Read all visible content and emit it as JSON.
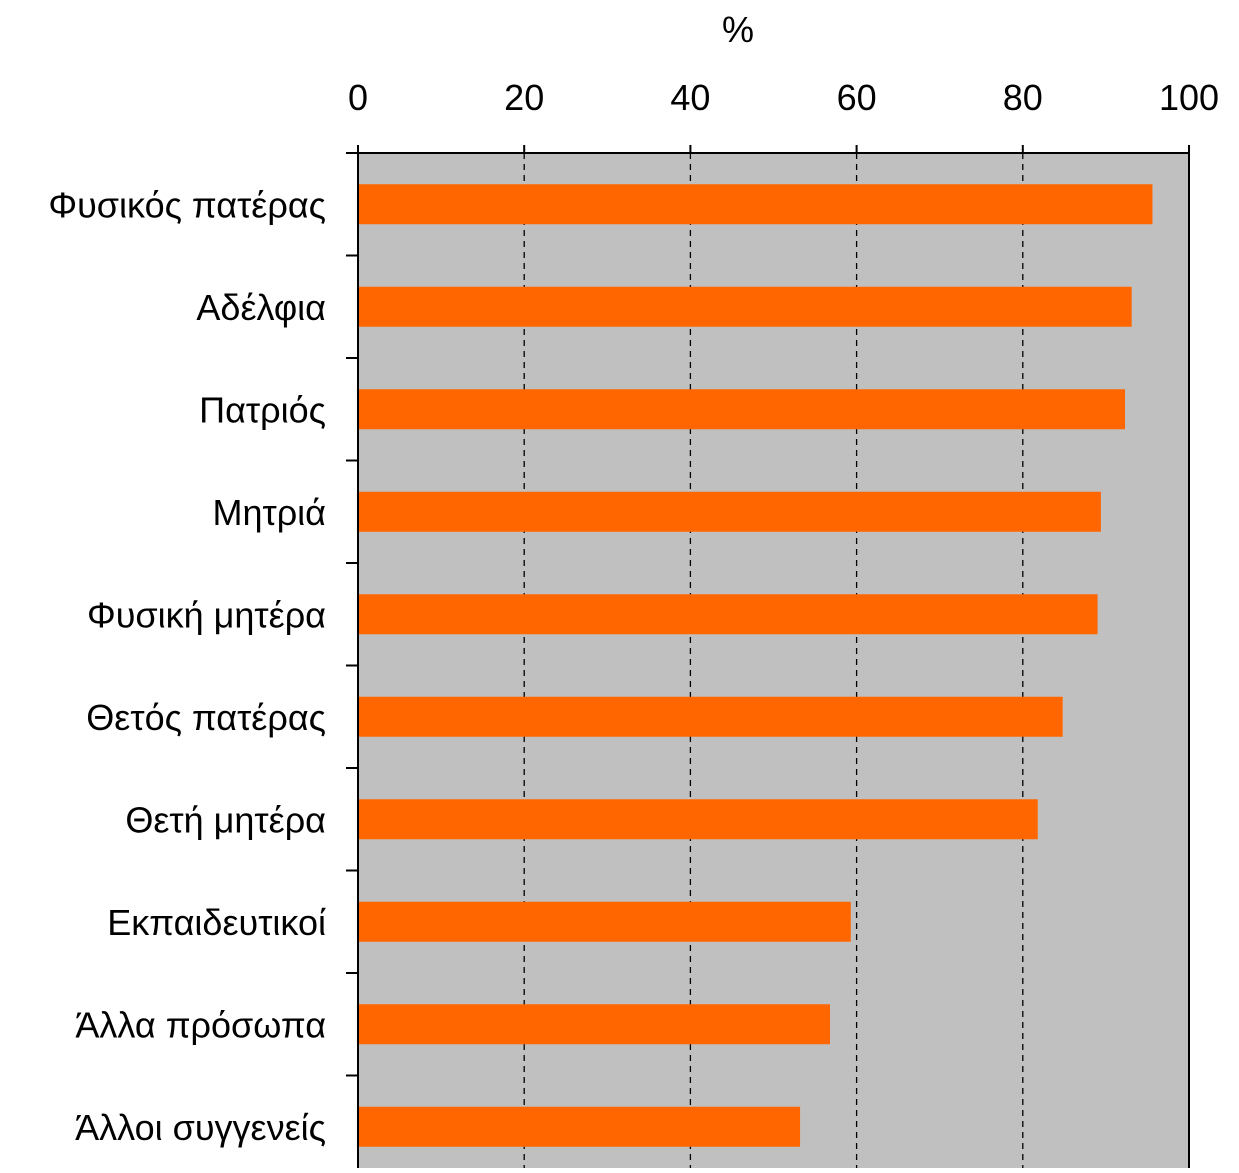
{
  "chart_data": {
    "type": "bar",
    "orientation": "horizontal",
    "xlabel": "%",
    "xlim": [
      0,
      100
    ],
    "xticks": [
      "0",
      "20",
      "40",
      "60",
      "80",
      "100"
    ],
    "grid": true,
    "categories": [
      "Φυσικός πατέρας",
      "Αδέλφια",
      "Πατριός",
      "Μητριά",
      "Φυσική μητέρα",
      "Θετός πατέρας",
      "Θετή μητέρα",
      "Εκπαιδευτικοί",
      "Άλλα πρόσωπα",
      "Άλλοι συγγενείς"
    ],
    "values": [
      95.6,
      93.1,
      92.3,
      89.4,
      89.0,
      84.8,
      81.8,
      59.3,
      56.8,
      53.2
    ],
    "colors": {
      "bar": "#ff6600",
      "plot_background": "#c0c0c0",
      "axis": "#000000"
    }
  }
}
